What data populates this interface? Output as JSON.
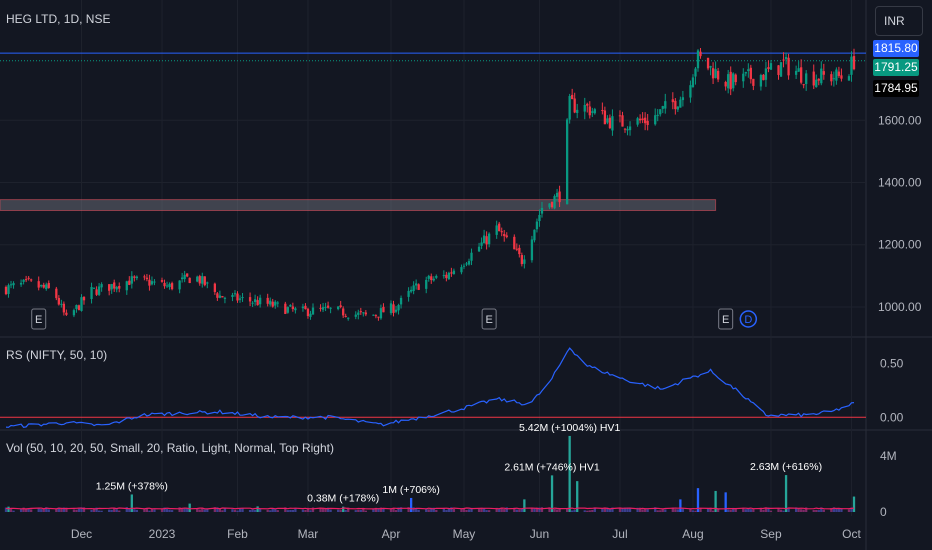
{
  "header": {
    "symbol_title": "HEG LTD, 1D, NSE",
    "currency": "INR"
  },
  "price_labels": {
    "resistance": "1815.80",
    "last": "1791.25",
    "prev_close": "1784.95",
    "colors": {
      "resistance": "#2962ff",
      "last": "#089981",
      "prev_close": "#000000"
    }
  },
  "panes": {
    "rs_title": "RS (NIFTY, 50, 10)",
    "vol_title": "Vol (50, 10, 20, 50, Small, 20, Ratio, Light, Normal, Top Right)"
  },
  "event_markers": [
    {
      "label": "E",
      "type": "earnings",
      "date": "2022-11-14"
    },
    {
      "label": "E",
      "type": "earnings",
      "date": "2023-05-12"
    },
    {
      "label": "E",
      "type": "earnings",
      "date": "2023-08-14"
    },
    {
      "label": "D",
      "type": "dividend",
      "date": "2023-08-23"
    }
  ],
  "volume_annotations": [
    {
      "text": "1.25M (+378%)",
      "date": "2022-12-21"
    },
    {
      "text": "0.38M (+178%)",
      "date": "2023-03-15"
    },
    {
      "text": "1M (+706%)",
      "date": "2023-04-11"
    },
    {
      "text": "2.61M (+746%) HV1",
      "date": "2023-06-06"
    },
    {
      "text": "5.42M (+1004%) HV1",
      "date": "2023-06-13"
    },
    {
      "text": "2.63M (+616%)",
      "date": "2023-09-07"
    }
  ],
  "chart_data": [
    {
      "type": "candlestick",
      "title": "HEG LTD, 1D, NSE",
      "y_ticks": [
        1000,
        1200,
        1400,
        1600
      ],
      "y_tick_labels": [
        "1000.00",
        "1200.00",
        "1400.00",
        "1600.00"
      ],
      "ylim": [
        910,
        1890
      ],
      "x_tick_labels": [
        "Dec",
        "2023",
        "Feb",
        "Mar",
        "Apr",
        "May",
        "Jun",
        "Jul",
        "Aug",
        "Sep",
        "Oct"
      ],
      "x_tick_dates": [
        "2022-12-01",
        "2023-01-02",
        "2023-02-01",
        "2023-03-01",
        "2023-04-03",
        "2023-05-02",
        "2023-06-01",
        "2023-07-03",
        "2023-08-01",
        "2023-09-01",
        "2023-10-03"
      ],
      "date_range": [
        "2022-11-01",
        "2023-10-04"
      ],
      "zone": {
        "from": 1310,
        "to": 1345,
        "end_date": "2023-08-10"
      },
      "horizontal_lines": [
        1815.8,
        1791.25
      ],
      "close_path": [
        [
          "2022-11-01",
          1060
        ],
        [
          "2022-11-10",
          1075
        ],
        [
          "2022-11-20",
          1050
        ],
        [
          "2022-11-25",
          960
        ],
        [
          "2022-12-05",
          1050
        ],
        [
          "2022-12-20",
          1085
        ],
        [
          "2022-12-28",
          1080
        ],
        [
          "2023-01-05",
          1065
        ],
        [
          "2023-01-15",
          1100
        ],
        [
          "2023-01-25",
          1035
        ],
        [
          "2023-02-10",
          1015
        ],
        [
          "2023-02-25",
          985
        ],
        [
          "2023-03-10",
          990
        ],
        [
          "2023-03-25",
          970
        ],
        [
          "2023-04-05",
          1000
        ],
        [
          "2023-04-15",
          1080
        ],
        [
          "2023-04-25",
          1100
        ],
        [
          "2023-05-05",
          1170
        ],
        [
          "2023-05-15",
          1250
        ],
        [
          "2023-05-25",
          1150
        ],
        [
          "2023-06-02",
          1320
        ],
        [
          "2023-06-09",
          1360
        ],
        [
          "2023-06-13",
          1650
        ],
        [
          "2023-06-20",
          1640
        ],
        [
          "2023-07-01",
          1590
        ],
        [
          "2023-07-15",
          1600
        ],
        [
          "2023-07-28",
          1680
        ],
        [
          "2023-08-03",
          1800
        ],
        [
          "2023-08-15",
          1720
        ],
        [
          "2023-08-30",
          1750
        ],
        [
          "2023-09-06",
          1780
        ],
        [
          "2023-09-15",
          1740
        ],
        [
          "2023-09-30",
          1740
        ],
        [
          "2023-10-04",
          1791.25
        ]
      ]
    },
    {
      "type": "line",
      "title": "RS (NIFTY, 50, 10)",
      "y_ticks": [
        0.0,
        0.5
      ],
      "y_tick_labels": [
        "0.00",
        "0.50"
      ],
      "ylim": [
        -0.1,
        0.72
      ],
      "zero_line": 0,
      "points": [
        [
          "2022-11-01",
          -0.09
        ],
        [
          "2022-11-25",
          -0.05
        ],
        [
          "2022-12-10",
          -0.08
        ],
        [
          "2022-12-25",
          0.02
        ],
        [
          "2023-01-10",
          0.04
        ],
        [
          "2023-01-25",
          0.05
        ],
        [
          "2023-02-15",
          0.0
        ],
        [
          "2023-03-10",
          0.0
        ],
        [
          "2023-03-30",
          -0.07
        ],
        [
          "2023-04-15",
          0.0
        ],
        [
          "2023-05-01",
          0.08
        ],
        [
          "2023-05-15",
          0.17
        ],
        [
          "2023-05-28",
          0.12
        ],
        [
          "2023-06-05",
          0.32
        ],
        [
          "2023-06-13",
          0.65
        ],
        [
          "2023-06-20",
          0.48
        ],
        [
          "2023-07-05",
          0.35
        ],
        [
          "2023-07-20",
          0.26
        ],
        [
          "2023-07-30",
          0.36
        ],
        [
          "2023-08-08",
          0.43
        ],
        [
          "2023-08-20",
          0.22
        ],
        [
          "2023-08-30",
          0.02
        ],
        [
          "2023-09-15",
          0.02
        ],
        [
          "2023-09-25",
          0.05
        ],
        [
          "2023-10-04",
          0.13
        ]
      ]
    },
    {
      "type": "bar",
      "title": "Vol (50, 10, 20, 50, Small, 20, Ratio, Light, Normal, Top Right)",
      "y_ticks": [
        0,
        4000000
      ],
      "y_tick_labels": [
        "0",
        "4M"
      ],
      "ylim": [
        0,
        5700000
      ],
      "typical_volume": 230000,
      "spikes": [
        {
          "date": "2022-11-02",
          "value": 380000
        },
        {
          "date": "2022-12-21",
          "value": 1250000
        },
        {
          "date": "2023-01-13",
          "value": 600000
        },
        {
          "date": "2023-02-09",
          "value": 400000
        },
        {
          "date": "2023-03-15",
          "value": 380000
        },
        {
          "date": "2023-04-11",
          "value": 1000000
        },
        {
          "date": "2023-05-26",
          "value": 900000
        },
        {
          "date": "2023-06-06",
          "value": 2610000
        },
        {
          "date": "2023-06-13",
          "value": 5420000
        },
        {
          "date": "2023-06-16",
          "value": 2200000
        },
        {
          "date": "2023-07-27",
          "value": 900000
        },
        {
          "date": "2023-08-03",
          "value": 1700000
        },
        {
          "date": "2023-08-10",
          "value": 1500000
        },
        {
          "date": "2023-08-14",
          "value": 1400000
        },
        {
          "date": "2023-09-07",
          "value": 2630000
        },
        {
          "date": "2023-10-04",
          "value": 1100000
        }
      ]
    }
  ]
}
